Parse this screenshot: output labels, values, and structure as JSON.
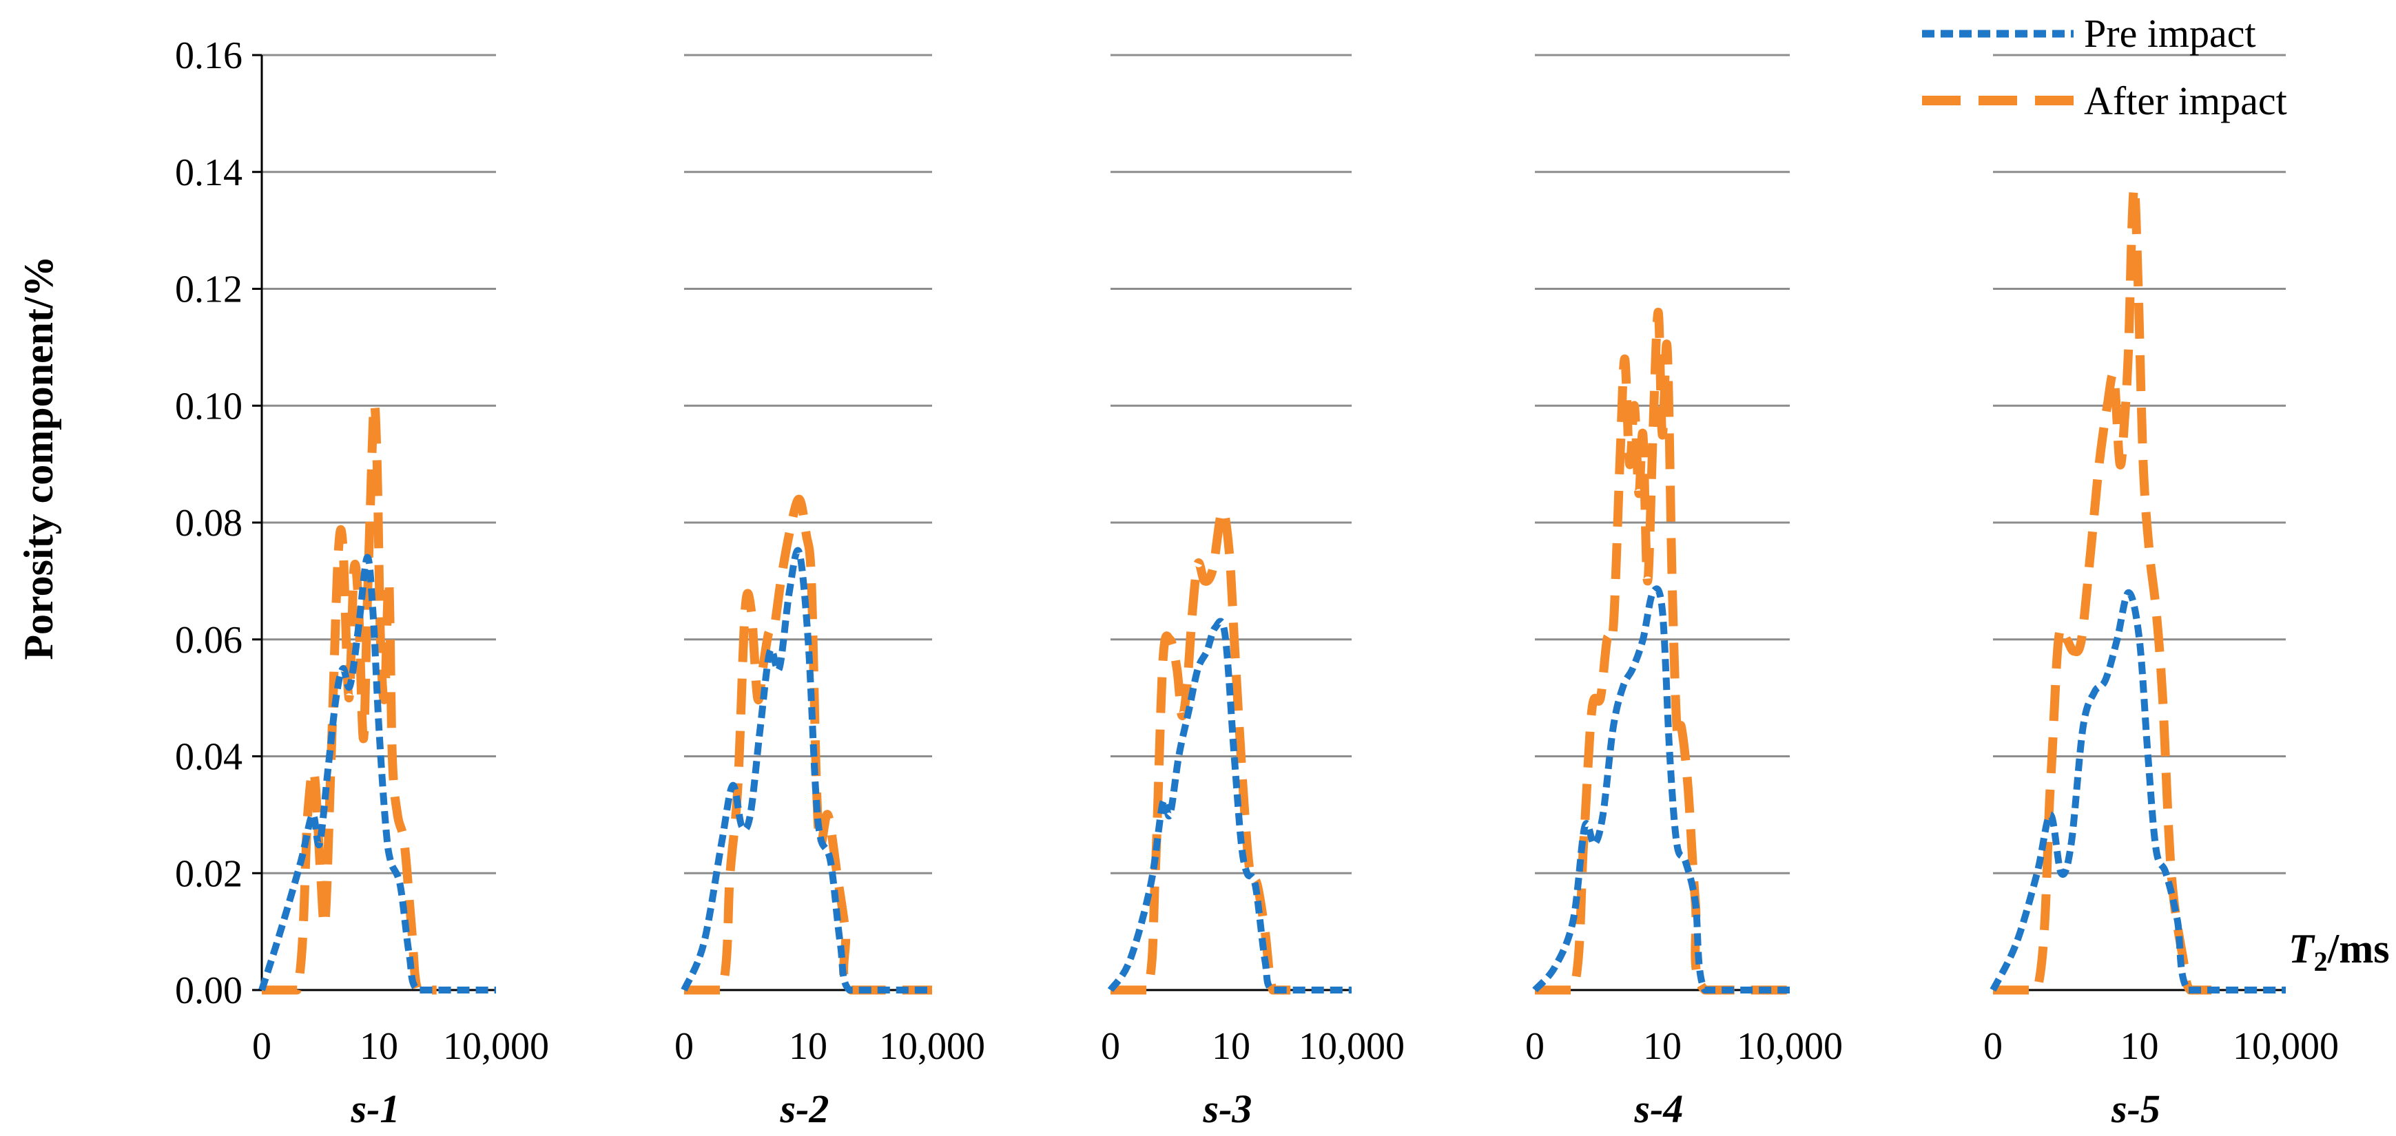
{
  "chart_data": {
    "type": "line",
    "ylabel": "Porosity component/%",
    "xlabel_main": "T",
    "xlabel_sub": "2",
    "xlabel_unit": "/ms",
    "y_ticks": [
      "0.00",
      "0.02",
      "0.04",
      "0.06",
      "0.08",
      "0.10",
      "0.12",
      "0.14",
      "0.16"
    ],
    "ylim": [
      0,
      0.16
    ],
    "x_scale": "log",
    "x_ticks": [
      "0",
      "10",
      "10,000"
    ],
    "grid": true,
    "legend_position": "top-right",
    "legend": {
      "pre": "Pre impact",
      "after": "After impact"
    },
    "colors": {
      "pre": "#1f77c8",
      "after": "#f58a2a",
      "grid": "#8c8c8c"
    },
    "panels": [
      {
        "label": "s-1",
        "pre": [
          [
            0.01,
            0
          ],
          [
            0.03,
            0.01
          ],
          [
            0.1,
            0.022
          ],
          [
            0.2,
            0.03
          ],
          [
            0.3,
            0.025
          ],
          [
            0.5,
            0.038
          ],
          [
            0.8,
            0.05
          ],
          [
            1.2,
            0.055
          ],
          [
            1.8,
            0.052
          ],
          [
            3,
            0.062
          ],
          [
            5,
            0.074
          ],
          [
            7,
            0.065
          ],
          [
            10,
            0.045
          ],
          [
            15,
            0.028
          ],
          [
            20,
            0.022
          ],
          [
            35,
            0.018
          ],
          [
            60,
            0.006
          ],
          [
            100,
            0
          ],
          [
            1000,
            0
          ],
          [
            10000,
            0
          ]
        ],
        "after": [
          [
            0.01,
            0
          ],
          [
            0.08,
            0
          ],
          [
            0.15,
            0.03
          ],
          [
            0.22,
            0.037
          ],
          [
            0.32,
            0.02
          ],
          [
            0.42,
            0.012
          ],
          [
            0.6,
            0.04
          ],
          [
            0.9,
            0.074
          ],
          [
            1.2,
            0.076
          ],
          [
            1.7,
            0.05
          ],
          [
            2.3,
            0.072
          ],
          [
            3,
            0.066
          ],
          [
            4,
            0.043
          ],
          [
            5,
            0.065
          ],
          [
            6,
            0.082
          ],
          [
            7.5,
            0.1
          ],
          [
            9,
            0.09
          ],
          [
            11,
            0.06
          ],
          [
            14,
            0.05
          ],
          [
            18,
            0.07
          ],
          [
            22,
            0.04
          ],
          [
            30,
            0.03
          ],
          [
            45,
            0.025
          ],
          [
            70,
            0.01
          ],
          [
            100,
            0
          ],
          [
            300,
            0
          ]
        ]
      },
      {
        "label": "s-2",
        "pre": [
          [
            0.01,
            0
          ],
          [
            0.03,
            0.008
          ],
          [
            0.08,
            0.025
          ],
          [
            0.15,
            0.035
          ],
          [
            0.25,
            0.028
          ],
          [
            0.4,
            0.03
          ],
          [
            0.7,
            0.045
          ],
          [
            1.2,
            0.058
          ],
          [
            2,
            0.055
          ],
          [
            3.5,
            0.068
          ],
          [
            6,
            0.075
          ],
          [
            10,
            0.06
          ],
          [
            15,
            0.035
          ],
          [
            20,
            0.026
          ],
          [
            35,
            0.022
          ],
          [
            60,
            0.008
          ],
          [
            100,
            0
          ],
          [
            1000,
            0
          ],
          [
            10000,
            0
          ]
        ],
        "after": [
          [
            0.01,
            0
          ],
          [
            0.08,
            0
          ],
          [
            0.13,
            0.02
          ],
          [
            0.2,
            0.035
          ],
          [
            0.3,
            0.065
          ],
          [
            0.42,
            0.065
          ],
          [
            0.6,
            0.05
          ],
          [
            0.8,
            0.055
          ],
          [
            1.1,
            0.061
          ],
          [
            1.5,
            0.062
          ],
          [
            2.2,
            0.07
          ],
          [
            3.5,
            0.078
          ],
          [
            6,
            0.084
          ],
          [
            9,
            0.078
          ],
          [
            12,
            0.07
          ],
          [
            16,
            0.035
          ],
          [
            20,
            0.025
          ],
          [
            30,
            0.03
          ],
          [
            50,
            0.02
          ],
          [
            80,
            0.01
          ],
          [
            110,
            0
          ],
          [
            10000,
            0
          ]
        ]
      },
      {
        "label": "s-3",
        "pre": [
          [
            0.01,
            0
          ],
          [
            0.03,
            0.005
          ],
          [
            0.1,
            0.018
          ],
          [
            0.2,
            0.032
          ],
          [
            0.3,
            0.03
          ],
          [
            0.5,
            0.04
          ],
          [
            0.9,
            0.048
          ],
          [
            1.5,
            0.055
          ],
          [
            2.5,
            0.058
          ],
          [
            4,
            0.062
          ],
          [
            7,
            0.061
          ],
          [
            12,
            0.04
          ],
          [
            18,
            0.025
          ],
          [
            25,
            0.02
          ],
          [
            40,
            0.018
          ],
          [
            70,
            0.005
          ],
          [
            110,
            0
          ],
          [
            1000,
            0
          ],
          [
            10000,
            0
          ]
        ],
        "after": [
          [
            0.01,
            0
          ],
          [
            0.08,
            0
          ],
          [
            0.13,
            0.02
          ],
          [
            0.2,
            0.056
          ],
          [
            0.3,
            0.06
          ],
          [
            0.45,
            0.055
          ],
          [
            0.6,
            0.047
          ],
          [
            0.8,
            0.052
          ],
          [
            1.1,
            0.065
          ],
          [
            1.5,
            0.073
          ],
          [
            2.2,
            0.07
          ],
          [
            3.5,
            0.072
          ],
          [
            6,
            0.082
          ],
          [
            9,
            0.075
          ],
          [
            12,
            0.06
          ],
          [
            16,
            0.045
          ],
          [
            22,
            0.03
          ],
          [
            30,
            0.02
          ],
          [
            45,
            0.018
          ],
          [
            70,
            0.01
          ],
          [
            110,
            0
          ],
          [
            300,
            0
          ]
        ]
      },
      {
        "label": "s-4",
        "pre": [
          [
            0.01,
            0
          ],
          [
            0.03,
            0.004
          ],
          [
            0.08,
            0.012
          ],
          [
            0.15,
            0.028
          ],
          [
            0.25,
            0.025
          ],
          [
            0.4,
            0.03
          ],
          [
            0.7,
            0.045
          ],
          [
            1.2,
            0.052
          ],
          [
            2,
            0.055
          ],
          [
            3.5,
            0.06
          ],
          [
            6,
            0.068
          ],
          [
            10,
            0.065
          ],
          [
            15,
            0.04
          ],
          [
            22,
            0.025
          ],
          [
            35,
            0.022
          ],
          [
            60,
            0.015
          ],
          [
            100,
            0
          ],
          [
            1000,
            0
          ],
          [
            10000,
            0
          ]
        ],
        "after": [
          [
            0.01,
            0
          ],
          [
            0.08,
            0
          ],
          [
            0.14,
            0.025
          ],
          [
            0.22,
            0.048
          ],
          [
            0.35,
            0.05
          ],
          [
            0.5,
            0.06
          ],
          [
            0.7,
            0.062
          ],
          [
            1,
            0.09
          ],
          [
            1.3,
            0.108
          ],
          [
            1.7,
            0.09
          ],
          [
            2.2,
            0.1
          ],
          [
            2.8,
            0.085
          ],
          [
            3.5,
            0.095
          ],
          [
            4.5,
            0.07
          ],
          [
            6,
            0.095
          ],
          [
            8,
            0.116
          ],
          [
            10,
            0.095
          ],
          [
            13,
            0.11
          ],
          [
            17,
            0.07
          ],
          [
            22,
            0.045
          ],
          [
            28,
            0.045
          ],
          [
            40,
            0.035
          ],
          [
            60,
            0.015
          ],
          [
            100,
            0
          ],
          [
            10000,
            0
          ]
        ]
      },
      {
        "label": "s-5",
        "pre": [
          [
            0.01,
            0
          ],
          [
            0.03,
            0.008
          ],
          [
            0.08,
            0.02
          ],
          [
            0.15,
            0.03
          ],
          [
            0.25,
            0.02
          ],
          [
            0.4,
            0.025
          ],
          [
            0.7,
            0.045
          ],
          [
            1.2,
            0.051
          ],
          [
            2,
            0.053
          ],
          [
            3.5,
            0.06
          ],
          [
            6,
            0.068
          ],
          [
            10,
            0.06
          ],
          [
            15,
            0.04
          ],
          [
            22,
            0.024
          ],
          [
            35,
            0.02
          ],
          [
            60,
            0.012
          ],
          [
            100,
            0
          ],
          [
            1000,
            0
          ],
          [
            10000,
            0
          ]
        ],
        "after": [
          [
            0.01,
            0
          ],
          [
            0.08,
            0
          ],
          [
            0.15,
            0.035
          ],
          [
            0.22,
            0.06
          ],
          [
            0.32,
            0.06
          ],
          [
            0.45,
            0.058
          ],
          [
            0.65,
            0.06
          ],
          [
            1,
            0.075
          ],
          [
            1.5,
            0.09
          ],
          [
            2.2,
            0.1
          ],
          [
            3,
            0.105
          ],
          [
            4,
            0.09
          ],
          [
            5,
            0.098
          ],
          [
            6,
            0.11
          ],
          [
            7,
            0.13
          ],
          [
            8,
            0.137
          ],
          [
            9.5,
            0.12
          ],
          [
            12,
            0.09
          ],
          [
            16,
            0.075
          ],
          [
            22,
            0.065
          ],
          [
            30,
            0.05
          ],
          [
            45,
            0.02
          ],
          [
            80,
            0.005
          ],
          [
            110,
            0
          ],
          [
            300,
            0
          ]
        ]
      }
    ]
  }
}
